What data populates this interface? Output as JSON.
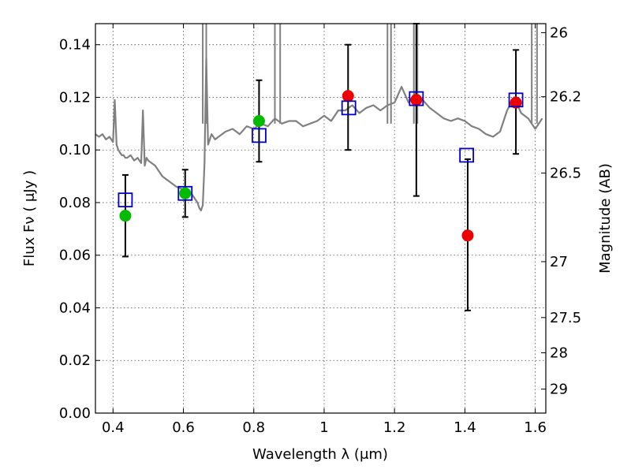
{
  "chart_data": {
    "type": "scatter",
    "title": "",
    "xlabel": "Wavelength  λ (μm)",
    "ylabel": "Flux  Fν  ( μJy )",
    "y2label": "Magnitude (AB)",
    "xlim": [
      0.35,
      1.63
    ],
    "ylim": [
      0.0,
      0.148
    ],
    "grid": true,
    "x_ticks": [
      0.4,
      0.6,
      0.8,
      1.0,
      1.2,
      1.4,
      1.6
    ],
    "x_tick_labels": [
      "0.4",
      "0.6",
      "0.8",
      "1",
      "1.2",
      "1.4",
      "1.6"
    ],
    "y_ticks": [
      0.0,
      0.02,
      0.04,
      0.06,
      0.08,
      0.1,
      0.12,
      0.14
    ],
    "y_tick_labels": [
      "0.00",
      "0.02",
      "0.04",
      "0.06",
      "0.08",
      "0.10",
      "0.12",
      "0.14"
    ],
    "y2_ticks": [
      {
        "mag": 26,
        "label": "26"
      },
      {
        "mag": 26.2,
        "label": "26.2"
      },
      {
        "mag": 26.5,
        "label": "26.5"
      },
      {
        "mag": 27,
        "label": "27"
      },
      {
        "mag": 27.5,
        "label": "27.5"
      },
      {
        "mag": 28,
        "label": "28"
      },
      {
        "mag": 29,
        "label": "29"
      }
    ],
    "colors": {
      "green": "#00bb00",
      "red": "#ee0000",
      "model_box": "#0000cc",
      "spectrum": "#808080",
      "errorbar": "#000000"
    },
    "series": [
      {
        "name": "model_spectrum",
        "kind": "line",
        "x": [
          0.35,
          0.36,
          0.37,
          0.38,
          0.39,
          0.4,
          0.405,
          0.41,
          0.415,
          0.42,
          0.425,
          0.43,
          0.435,
          0.44,
          0.45,
          0.46,
          0.47,
          0.48,
          0.485,
          0.49,
          0.495,
          0.5,
          0.52,
          0.54,
          0.56,
          0.58,
          0.6,
          0.62,
          0.63,
          0.64,
          0.645,
          0.65,
          0.655,
          0.66,
          0.665,
          0.67,
          0.68,
          0.69,
          0.7,
          0.72,
          0.74,
          0.76,
          0.78,
          0.8,
          0.82,
          0.84,
          0.86,
          0.88,
          0.9,
          0.92,
          0.94,
          0.96,
          0.98,
          1.0,
          1.02,
          1.04,
          1.06,
          1.08,
          1.1,
          1.12,
          1.14,
          1.16,
          1.18,
          1.2,
          1.22,
          1.24,
          1.26,
          1.28,
          1.3,
          1.32,
          1.34,
          1.36,
          1.38,
          1.4,
          1.42,
          1.44,
          1.46,
          1.48,
          1.5,
          1.52,
          1.54,
          1.56,
          1.58,
          1.6,
          1.62
        ],
        "y": [
          0.106,
          0.105,
          0.106,
          0.104,
          0.105,
          0.103,
          0.119,
          0.102,
          0.1,
          0.099,
          0.098,
          0.098,
          0.097,
          0.097,
          0.098,
          0.096,
          0.097,
          0.095,
          0.115,
          0.094,
          0.097,
          0.096,
          0.094,
          0.09,
          0.088,
          0.086,
          0.085,
          0.084,
          0.082,
          0.08,
          0.078,
          0.077,
          0.079,
          0.095,
          0.135,
          0.102,
          0.106,
          0.104,
          0.105,
          0.107,
          0.108,
          0.106,
          0.109,
          0.108,
          0.11,
          0.109,
          0.112,
          0.11,
          0.111,
          0.111,
          0.109,
          0.11,
          0.111,
          0.113,
          0.111,
          0.115,
          0.115,
          0.117,
          0.114,
          0.116,
          0.117,
          0.115,
          0.117,
          0.118,
          0.124,
          0.118,
          0.122,
          0.119,
          0.116,
          0.114,
          0.112,
          0.111,
          0.112,
          0.111,
          0.109,
          0.108,
          0.106,
          0.105,
          0.107,
          0.115,
          0.12,
          0.114,
          0.112,
          0.108,
          0.112
        ]
      },
      {
        "name": "observed_green",
        "kind": "points",
        "x": [
          0.435,
          0.605,
          0.815
        ],
        "y": [
          0.075,
          0.0835,
          0.111
        ],
        "err_low": [
          0.0595,
          0.0745,
          0.0955
        ],
        "err_high": [
          0.0905,
          0.0925,
          0.1265
        ]
      },
      {
        "name": "observed_red",
        "kind": "points",
        "x": [
          1.068,
          1.262,
          1.408,
          1.545
        ],
        "y": [
          0.1205,
          0.119,
          0.0675,
          0.118
        ],
        "err_low": [
          0.1,
          0.0825,
          0.039,
          0.0985
        ],
        "err_high": [
          0.14,
          0.148,
          0.0965,
          0.138
        ]
      },
      {
        "name": "model_photometry",
        "kind": "open_squares",
        "x": [
          0.435,
          0.605,
          0.815,
          1.07,
          1.262,
          1.405,
          1.545
        ],
        "y": [
          0.081,
          0.0835,
          0.1055,
          0.116,
          0.1195,
          0.098,
          0.119
        ]
      }
    ]
  }
}
